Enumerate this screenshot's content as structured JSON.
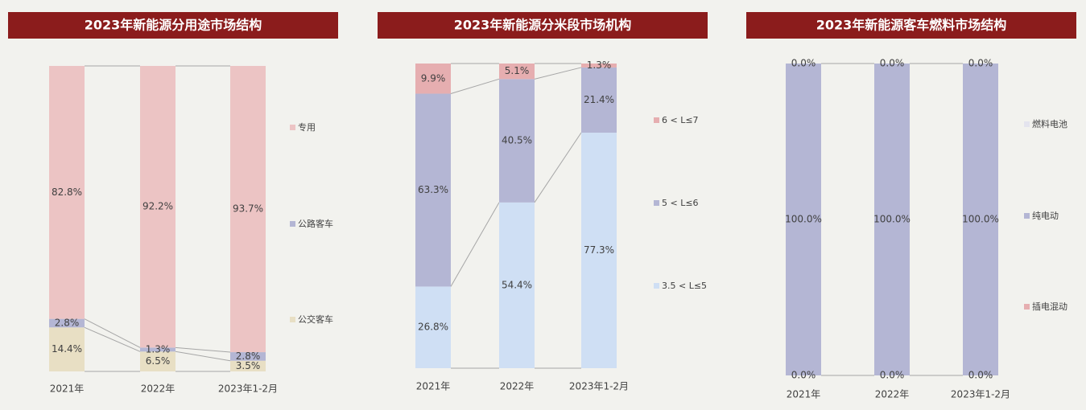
{
  "chart_data": [
    {
      "type": "bar",
      "stacked": true,
      "title": "2023年新能源分用途市场结构",
      "categories": [
        "2021年",
        "2022年",
        "2023年1-2月"
      ],
      "series": [
        {
          "name": "公交客车",
          "color": "#e8dfc4",
          "values": [
            14.4,
            6.5,
            3.5
          ],
          "value_labels": [
            "14.4%",
            "6.5%",
            "3.5%"
          ]
        },
        {
          "name": "公路客车",
          "color": "#b4b6d4",
          "values": [
            2.8,
            1.3,
            2.8
          ],
          "value_labels": [
            "2.8%",
            "1.3%",
            "2.8%"
          ]
        },
        {
          "name": "专用",
          "color": "#ecc4c4",
          "values": [
            82.8,
            92.2,
            93.7
          ],
          "value_labels": [
            "82.8%",
            "92.2%",
            "93.7%"
          ]
        }
      ]
    },
    {
      "type": "bar",
      "stacked": true,
      "title": "2023年新能源分米段市场机构",
      "categories": [
        "2021年",
        "2022年",
        "2023年1-2月"
      ],
      "series": [
        {
          "name": "3.5 < L≤5",
          "color": "#cfdff4",
          "values": [
            26.8,
            54.4,
            77.3
          ],
          "value_labels": [
            "26.8%",
            "54.4%",
            "77.3%"
          ]
        },
        {
          "name": "5 < L≤6",
          "color": "#b4b6d4",
          "values": [
            63.3,
            40.5,
            21.4
          ],
          "value_labels": [
            "63.3%",
            "40.5%",
            "21.4%"
          ]
        },
        {
          "name": "6 < L≤7",
          "color": "#e6aeb0",
          "values": [
            9.9,
            5.1,
            1.3
          ],
          "value_labels": [
            "9.9%",
            "5.1%",
            "1.3%"
          ]
        }
      ]
    },
    {
      "type": "bar",
      "stacked": true,
      "title": "2023年新能源客车燃料市场结构",
      "categories": [
        "2021年",
        "2022年",
        "2023年1-2月"
      ],
      "series": [
        {
          "name": "插电混动",
          "color": "#e6aeb0",
          "values": [
            0,
            0,
            0
          ],
          "value_labels": [
            "0.0%",
            "0.0%",
            "0.0%"
          ]
        },
        {
          "name": "纯电动",
          "color": "#b4b6d4",
          "values": [
            100,
            100,
            100
          ],
          "value_labels": [
            "100.0%",
            "100.0%",
            "100.0%"
          ]
        },
        {
          "name": "燃料电池",
          "color": "#e4e4ee",
          "values": [
            0,
            0,
            0
          ],
          "value_labels": [
            "0.0%",
            "0.0%",
            "0.0%"
          ]
        }
      ]
    }
  ]
}
